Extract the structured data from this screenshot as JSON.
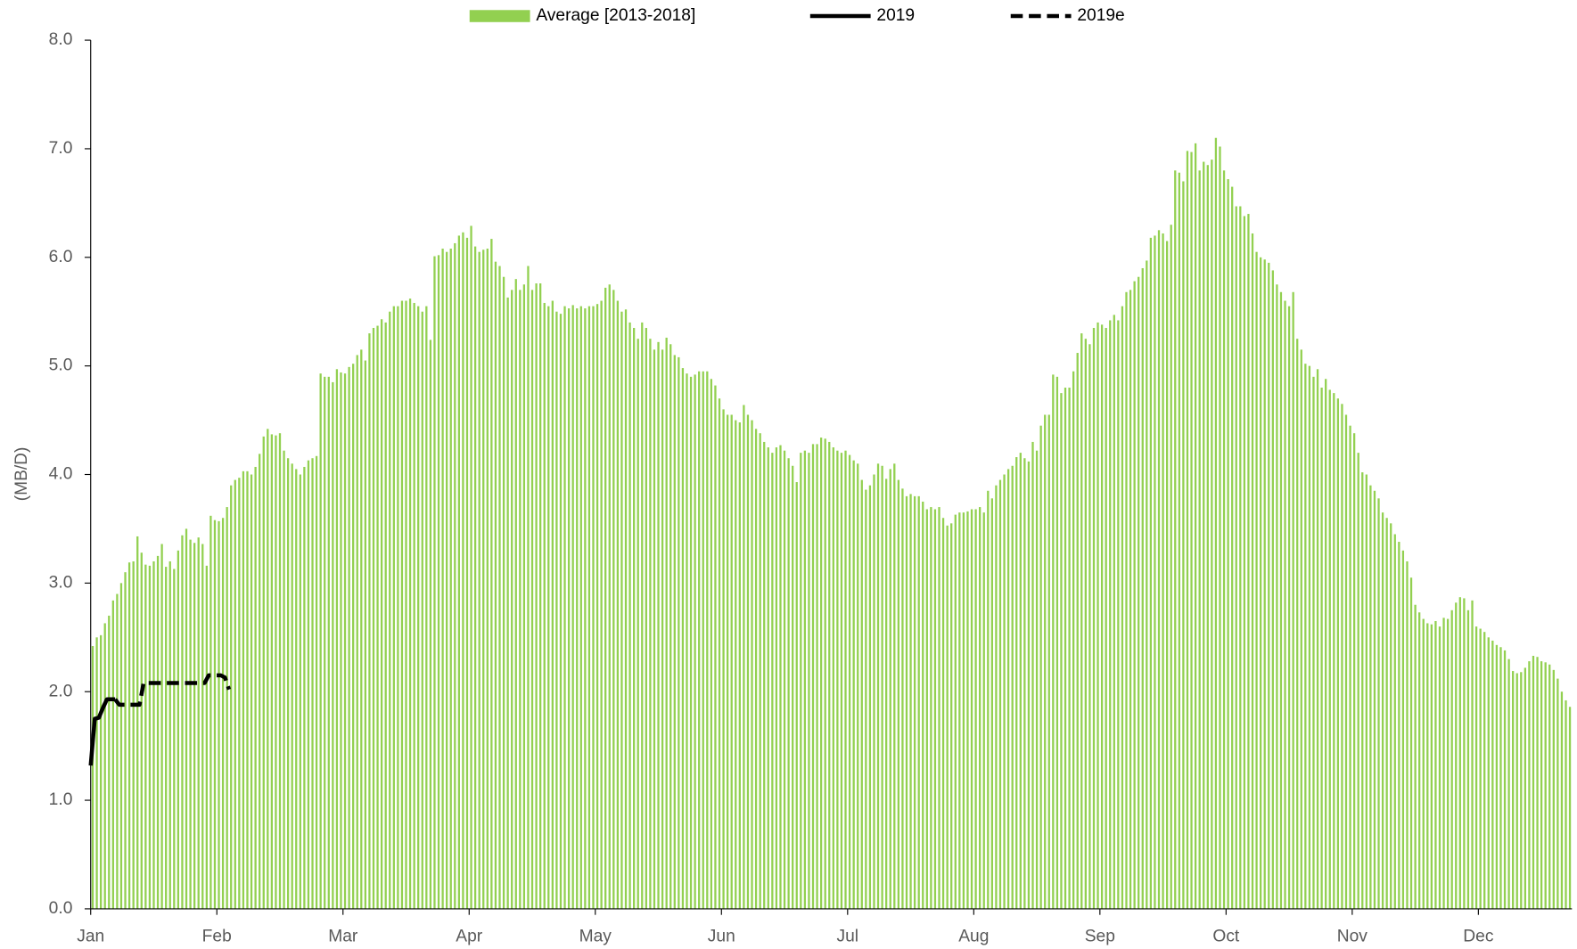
{
  "chart_data": {
    "type": "bar",
    "y_label": "(MB/D)",
    "ylim": [
      0,
      8
    ],
    "yticks": [
      {
        "value": 0,
        "label": "0.0"
      },
      {
        "value": 1,
        "label": "1.0"
      },
      {
        "value": 2,
        "label": "2.0"
      },
      {
        "value": 3,
        "label": "3.0"
      },
      {
        "value": 4,
        "label": "4.0"
      },
      {
        "value": 5,
        "label": "5.0"
      },
      {
        "value": 6,
        "label": "6.0"
      },
      {
        "value": 7,
        "label": "7.0"
      },
      {
        "value": 8,
        "label": "8.0"
      }
    ],
    "xlim": [
      0,
      364
    ],
    "xticks": [
      {
        "value": 0,
        "label": "Jan"
      },
      {
        "value": 31,
        "label": "Feb"
      },
      {
        "value": 62,
        "label": "Mar"
      },
      {
        "value": 93,
        "label": "Apr"
      },
      {
        "value": 124,
        "label": "May"
      },
      {
        "value": 155,
        "label": "Jun"
      },
      {
        "value": 186,
        "label": "Jul"
      },
      {
        "value": 217,
        "label": "Aug"
      },
      {
        "value": 248,
        "label": "Sep"
      },
      {
        "value": 279,
        "label": "Oct"
      },
      {
        "value": 310,
        "label": "Nov"
      },
      {
        "value": 341,
        "label": "Dec"
      }
    ],
    "bar_series": {
      "name": "Average [2013-2018]",
      "color": "#92d050",
      "values": [
        2.42,
        2.5,
        2.52,
        2.63,
        2.7,
        2.84,
        2.9,
        3.0,
        3.1,
        3.19,
        3.2,
        3.43,
        3.28,
        3.17,
        3.16,
        3.2,
        3.25,
        3.36,
        3.15,
        3.2,
        3.13,
        3.3,
        3.44,
        3.5,
        3.4,
        3.37,
        3.42,
        3.36,
        3.16,
        3.62,
        3.58,
        3.57,
        3.6,
        3.7,
        3.9,
        3.95,
        3.97,
        4.03,
        4.03,
        4.0,
        4.07,
        4.19,
        4.35,
        4.42,
        4.37,
        4.36,
        4.38,
        4.22,
        4.15,
        4.1,
        4.05,
        4.0,
        4.07,
        4.13,
        4.15,
        4.17,
        4.93,
        4.9,
        4.9,
        4.85,
        4.97,
        4.94,
        4.93,
        4.99,
        5.02,
        5.1,
        5.15,
        5.05,
        5.3,
        5.35,
        5.37,
        5.43,
        5.4,
        5.5,
        5.55,
        5.55,
        5.6,
        5.6,
        5.62,
        5.58,
        5.55,
        5.5,
        5.55,
        5.24,
        6.01,
        6.02,
        6.08,
        6.05,
        6.08,
        6.13,
        6.2,
        6.23,
        6.18,
        6.29,
        6.1,
        6.05,
        6.07,
        6.08,
        6.17,
        5.96,
        5.92,
        5.82,
        5.63,
        5.7,
        5.8,
        5.7,
        5.75,
        5.92,
        5.7,
        5.76,
        5.76,
        5.58,
        5.55,
        5.6,
        5.5,
        5.48,
        5.55,
        5.53,
        5.56,
        5.53,
        5.55,
        5.53,
        5.55,
        5.55,
        5.57,
        5.6,
        5.72,
        5.75,
        5.7,
        5.6,
        5.5,
        5.52,
        5.4,
        5.35,
        5.25,
        5.4,
        5.35,
        5.25,
        5.15,
        5.22,
        5.15,
        5.26,
        5.2,
        5.1,
        5.08,
        4.98,
        4.93,
        4.9,
        4.92,
        4.95,
        4.95,
        4.95,
        4.88,
        4.82,
        4.7,
        4.6,
        4.55,
        4.55,
        4.5,
        4.48,
        4.64,
        4.55,
        4.5,
        4.42,
        4.38,
        4.3,
        4.25,
        4.2,
        4.25,
        4.27,
        4.22,
        4.15,
        4.08,
        3.93,
        4.2,
        4.22,
        4.2,
        4.28,
        4.28,
        4.34,
        4.33,
        4.3,
        4.25,
        4.22,
        4.2,
        4.22,
        4.18,
        4.13,
        4.1,
        3.95,
        3.86,
        3.9,
        4.0,
        4.1,
        4.08,
        3.96,
        4.05,
        4.1,
        3.95,
        3.87,
        3.8,
        3.82,
        3.8,
        3.8,
        3.75,
        3.68,
        3.7,
        3.68,
        3.7,
        3.6,
        3.53,
        3.55,
        3.63,
        3.65,
        3.65,
        3.66,
        3.68,
        3.68,
        3.7,
        3.65,
        3.85,
        3.78,
        3.9,
        3.95,
        4.0,
        4.05,
        4.08,
        4.16,
        4.2,
        4.15,
        4.12,
        4.3,
        4.22,
        4.45,
        4.55,
        4.55,
        4.92,
        4.9,
        4.75,
        4.8,
        4.8,
        4.95,
        5.12,
        5.3,
        5.25,
        5.2,
        5.35,
        5.4,
        5.38,
        5.35,
        5.42,
        5.47,
        5.42,
        5.55,
        5.68,
        5.7,
        5.78,
        5.82,
        5.9,
        5.97,
        6.18,
        6.2,
        6.25,
        6.22,
        6.15,
        6.3,
        6.8,
        6.78,
        6.7,
        6.98,
        6.97,
        7.05,
        6.8,
        6.88,
        6.85,
        6.9,
        7.1,
        7.02,
        6.8,
        6.72,
        6.65,
        6.47,
        6.47,
        6.38,
        6.4,
        6.22,
        6.05,
        6.0,
        5.98,
        5.95,
        5.88,
        5.75,
        5.68,
        5.6,
        5.55,
        5.68,
        5.25,
        5.15,
        5.02,
        5.0,
        4.9,
        4.97,
        4.8,
        4.88,
        4.78,
        4.75,
        4.7,
        4.65,
        4.55,
        4.45,
        4.38,
        4.2,
        4.02,
        4.0,
        3.9,
        3.85,
        3.78,
        3.65,
        3.6,
        3.55,
        3.45,
        3.38,
        3.3,
        3.2,
        3.05,
        2.8,
        2.73,
        2.67,
        2.63,
        2.62,
        2.65,
        2.6,
        2.68,
        2.67,
        2.75,
        2.82,
        2.87,
        2.86,
        2.75,
        2.84,
        2.6,
        2.58,
        2.55,
        2.5,
        2.47,
        2.43,
        2.41,
        2.38,
        2.3,
        2.19,
        2.17,
        2.18,
        2.22,
        2.28,
        2.33,
        2.32,
        2.28,
        2.27,
        2.25,
        2.2,
        2.12,
        2.0,
        1.92,
        1.86
      ]
    },
    "series": [
      {
        "name": "2019",
        "color": "#000000",
        "dash": false,
        "x": [
          0,
          1,
          2,
          3,
          4,
          5,
          6
        ],
        "values": [
          1.32,
          1.75,
          1.76,
          1.85,
          1.93,
          1.93,
          1.93
        ]
      },
      {
        "name": "2019e",
        "color": "#000000",
        "dash": true,
        "x": [
          6,
          7,
          8,
          9,
          10,
          11,
          12,
          13,
          14,
          15,
          16,
          17,
          18,
          19,
          20,
          21,
          22,
          23,
          24,
          25,
          26,
          27,
          28,
          29,
          30,
          31,
          32,
          33,
          34
        ],
        "values": [
          1.93,
          1.88,
          1.88,
          1.88,
          1.88,
          1.88,
          1.88,
          2.08,
          2.08,
          2.08,
          2.08,
          2.08,
          2.08,
          2.08,
          2.08,
          2.08,
          2.08,
          2.08,
          2.08,
          2.08,
          2.08,
          2.08,
          2.08,
          2.15,
          2.15,
          2.15,
          2.15,
          2.13,
          2.02
        ]
      }
    ]
  }
}
